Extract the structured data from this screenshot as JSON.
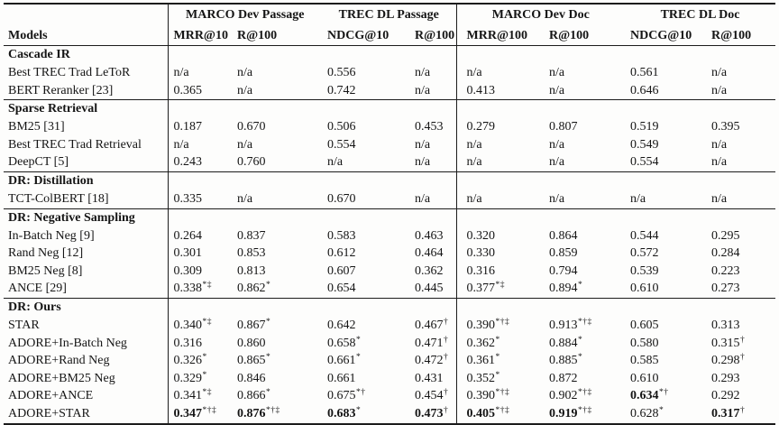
{
  "page": {
    "background": "#fdfdfc",
    "text_color": "#151515",
    "rule_color": "#1c1c1c"
  },
  "table": {
    "corner_label": "Models",
    "groups": [
      {
        "label": "MARCO Dev Passage",
        "metrics": [
          "MRR@10",
          "R@100"
        ]
      },
      {
        "label": "TREC DL Passage",
        "metrics": [
          "NDCG@10",
          "R@100"
        ]
      },
      {
        "label": "MARCO Dev Doc",
        "metrics": [
          "MRR@100",
          "R@100"
        ]
      },
      {
        "label": "TREC DL Doc",
        "metrics": [
          "NDCG@10",
          "R@100"
        ]
      }
    ],
    "sections": [
      {
        "title": "Cascade IR",
        "rows": [
          {
            "model": "Best TREC Trad LeToR",
            "cells": [
              {
                "v": "n/a"
              },
              {
                "v": "n/a"
              },
              {
                "v": "0.556"
              },
              {
                "v": "n/a"
              },
              {
                "v": "n/a"
              },
              {
                "v": "n/a"
              },
              {
                "v": "0.561"
              },
              {
                "v": "n/a"
              }
            ]
          },
          {
            "model": "BERT Reranker [23]",
            "cells": [
              {
                "v": "0.365"
              },
              {
                "v": "n/a"
              },
              {
                "v": "0.742"
              },
              {
                "v": "n/a"
              },
              {
                "v": "0.413"
              },
              {
                "v": "n/a"
              },
              {
                "v": "0.646"
              },
              {
                "v": "n/a"
              }
            ]
          }
        ]
      },
      {
        "title": "Sparse Retrieval",
        "rows": [
          {
            "model": "BM25 [31]",
            "cells": [
              {
                "v": "0.187"
              },
              {
                "v": "0.670"
              },
              {
                "v": "0.506"
              },
              {
                "v": "0.453"
              },
              {
                "v": "0.279"
              },
              {
                "v": "0.807"
              },
              {
                "v": "0.519"
              },
              {
                "v": "0.395"
              }
            ]
          },
          {
            "model": "Best TREC Trad Retrieval",
            "cells": [
              {
                "v": "n/a"
              },
              {
                "v": "n/a"
              },
              {
                "v": "0.554"
              },
              {
                "v": "n/a"
              },
              {
                "v": "n/a"
              },
              {
                "v": "n/a"
              },
              {
                "v": "0.549"
              },
              {
                "v": "n/a"
              }
            ]
          },
          {
            "model": "DeepCT [5]",
            "cells": [
              {
                "v": "0.243"
              },
              {
                "v": "0.760"
              },
              {
                "v": "n/a"
              },
              {
                "v": "n/a"
              },
              {
                "v": "n/a"
              },
              {
                "v": "n/a"
              },
              {
                "v": "0.554"
              },
              {
                "v": "n/a"
              }
            ]
          }
        ]
      },
      {
        "title": "DR: Distillation",
        "rows": [
          {
            "model": "TCT-ColBERT [18]",
            "cells": [
              {
                "v": "0.335"
              },
              {
                "v": "n/a"
              },
              {
                "v": "0.670"
              },
              {
                "v": "n/a"
              },
              {
                "v": "n/a"
              },
              {
                "v": "n/a"
              },
              {
                "v": "n/a"
              },
              {
                "v": "n/a"
              }
            ]
          }
        ]
      },
      {
        "title": "DR: Negative Sampling",
        "rows": [
          {
            "model": "In-Batch Neg [9]",
            "cells": [
              {
                "v": "0.264"
              },
              {
                "v": "0.837"
              },
              {
                "v": "0.583"
              },
              {
                "v": "0.463"
              },
              {
                "v": "0.320"
              },
              {
                "v": "0.864"
              },
              {
                "v": "0.544"
              },
              {
                "v": "0.295"
              }
            ]
          },
          {
            "model": "Rand Neg [12]",
            "cells": [
              {
                "v": "0.301"
              },
              {
                "v": "0.853"
              },
              {
                "v": "0.612"
              },
              {
                "v": "0.464"
              },
              {
                "v": "0.330"
              },
              {
                "v": "0.859"
              },
              {
                "v": "0.572"
              },
              {
                "v": "0.284"
              }
            ]
          },
          {
            "model": "BM25 Neg [8]",
            "cells": [
              {
                "v": "0.309"
              },
              {
                "v": "0.813"
              },
              {
                "v": "0.607"
              },
              {
                "v": "0.362"
              },
              {
                "v": "0.316"
              },
              {
                "v": "0.794"
              },
              {
                "v": "0.539"
              },
              {
                "v": "0.223"
              }
            ]
          },
          {
            "model": "ANCE [29]",
            "cells": [
              {
                "v": "0.338",
                "sup": "*‡"
              },
              {
                "v": "0.862",
                "sup": "*"
              },
              {
                "v": "0.654"
              },
              {
                "v": "0.445"
              },
              {
                "v": "0.377",
                "sup": "*‡"
              },
              {
                "v": "0.894",
                "sup": "*"
              },
              {
                "v": "0.610"
              },
              {
                "v": "0.273"
              }
            ]
          }
        ]
      },
      {
        "title": "DR: Ours",
        "rows": [
          {
            "model": "STAR",
            "cells": [
              {
                "v": "0.340",
                "sup": "*‡"
              },
              {
                "v": "0.867",
                "sup": "*"
              },
              {
                "v": "0.642"
              },
              {
                "v": "0.467",
                "sup": "†"
              },
              {
                "v": "0.390",
                "sup": "*†‡"
              },
              {
                "v": "0.913",
                "sup": "*†‡"
              },
              {
                "v": "0.605"
              },
              {
                "v": "0.313"
              }
            ]
          },
          {
            "model": "ADORE+In-Batch Neg",
            "cells": [
              {
                "v": "0.316"
              },
              {
                "v": "0.860"
              },
              {
                "v": "0.658",
                "sup": "*"
              },
              {
                "v": "0.471",
                "sup": "†"
              },
              {
                "v": "0.362",
                "sup": "*"
              },
              {
                "v": "0.884",
                "sup": "*"
              },
              {
                "v": "0.580"
              },
              {
                "v": "0.315",
                "sup": "†"
              }
            ]
          },
          {
            "model": "ADORE+Rand Neg",
            "cells": [
              {
                "v": "0.326",
                "sup": "*"
              },
              {
                "v": "0.865",
                "sup": "*"
              },
              {
                "v": "0.661",
                "sup": "*"
              },
              {
                "v": "0.472",
                "sup": "†"
              },
              {
                "v": "0.361",
                "sup": "*"
              },
              {
                "v": "0.885",
                "sup": "*"
              },
              {
                "v": "0.585"
              },
              {
                "v": "0.298",
                "sup": "†"
              }
            ]
          },
          {
            "model": "ADORE+BM25 Neg",
            "cells": [
              {
                "v": "0.329",
                "sup": "*"
              },
              {
                "v": "0.846"
              },
              {
                "v": "0.661"
              },
              {
                "v": "0.431"
              },
              {
                "v": "0.352",
                "sup": "*"
              },
              {
                "v": "0.872"
              },
              {
                "v": "0.610"
              },
              {
                "v": "0.293"
              }
            ]
          },
          {
            "model": "ADORE+ANCE",
            "cells": [
              {
                "v": "0.341",
                "sup": "*‡"
              },
              {
                "v": "0.866",
                "sup": "*"
              },
              {
                "v": "0.675",
                "sup": "*†"
              },
              {
                "v": "0.454",
                "sup": "†"
              },
              {
                "v": "0.390",
                "sup": "*†‡"
              },
              {
                "v": "0.902",
                "sup": "*†‡"
              },
              {
                "v": "0.634",
                "sup": "*†",
                "bold": true
              },
              {
                "v": "0.292"
              }
            ]
          },
          {
            "model": "ADORE+STAR",
            "cells": [
              {
                "v": "0.347",
                "sup": "*†‡",
                "bold": true
              },
              {
                "v": "0.876",
                "sup": "*†‡",
                "bold": true
              },
              {
                "v": "0.683",
                "sup": "*",
                "bold": true
              },
              {
                "v": "0.473",
                "sup": "†",
                "bold": true
              },
              {
                "v": "0.405",
                "sup": "*†‡",
                "bold": true
              },
              {
                "v": "0.919",
                "sup": "*†‡",
                "bold": true
              },
              {
                "v": "0.628",
                "sup": "*"
              },
              {
                "v": "0.317",
                "sup": "†",
                "bold": true
              }
            ]
          }
        ]
      }
    ]
  }
}
